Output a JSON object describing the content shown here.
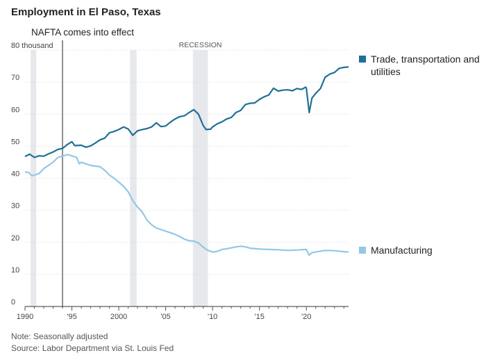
{
  "chart": {
    "title": "Employment in El Paso, Texas",
    "note": "Note: Seasonally adjusted",
    "source": "Source: Labor Department via St. Louis Fed"
  },
  "chart_data": {
    "type": "line",
    "title": "Employment in El Paso, Texas",
    "xlabel": "",
    "ylabel": "",
    "xlim": [
      1990,
      2024.5
    ],
    "ylim": [
      0,
      80
    ],
    "y_ticks": [
      {
        "value": 80,
        "label": "80 thousand"
      },
      {
        "value": 70,
        "label": "70"
      },
      {
        "value": 60,
        "label": "60"
      },
      {
        "value": 50,
        "label": "50"
      },
      {
        "value": 40,
        "label": "40"
      },
      {
        "value": 30,
        "label": "30"
      },
      {
        "value": 20,
        "label": "20"
      },
      {
        "value": 10,
        "label": "10"
      },
      {
        "value": 0,
        "label": "0"
      }
    ],
    "x_ticks": [
      {
        "value": 1990,
        "label": "1990"
      },
      {
        "value": 1995,
        "label": "'95"
      },
      {
        "value": 2000,
        "label": "2000"
      },
      {
        "value": 2005,
        "label": "'05"
      },
      {
        "value": 2010,
        "label": "'10"
      },
      {
        "value": 2015,
        "label": "'15"
      },
      {
        "value": 2020,
        "label": "'20"
      }
    ],
    "grid": true,
    "legend": "right, labels at line ends",
    "recession_bands": [
      {
        "start": 1990.6,
        "end": 1991.2,
        "label": ""
      },
      {
        "start": 2001.2,
        "end": 2001.9,
        "label": ""
      },
      {
        "start": 2007.9,
        "end": 2009.5,
        "label": "RECESSION"
      }
    ],
    "annotations": [
      {
        "x": 1994.0,
        "label": "NAFTA comes into effect"
      }
    ],
    "series": [
      {
        "name": "Trade, transportation and utilities",
        "color": "#1f6f96",
        "points": [
          [
            1990.0,
            46.8
          ],
          [
            1990.5,
            47.5
          ],
          [
            1991.0,
            46.5
          ],
          [
            1991.5,
            47.0
          ],
          [
            1992.0,
            46.9
          ],
          [
            1992.5,
            47.6
          ],
          [
            1993.0,
            48.2
          ],
          [
            1993.5,
            49.0
          ],
          [
            1994.0,
            49.3
          ],
          [
            1994.5,
            50.5
          ],
          [
            1995.0,
            51.4
          ],
          [
            1995.3,
            50.2
          ],
          [
            1996.0,
            50.3
          ],
          [
            1996.5,
            49.7
          ],
          [
            1997.0,
            50.1
          ],
          [
            1997.5,
            51.0
          ],
          [
            1998.0,
            52.0
          ],
          [
            1998.5,
            52.5
          ],
          [
            1999.0,
            54.2
          ],
          [
            1999.5,
            54.6
          ],
          [
            2000.0,
            55.2
          ],
          [
            2000.5,
            56.0
          ],
          [
            2001.0,
            55.4
          ],
          [
            2001.5,
            53.4
          ],
          [
            2002.0,
            54.8
          ],
          [
            2002.5,
            55.2
          ],
          [
            2003.0,
            55.5
          ],
          [
            2003.5,
            56.0
          ],
          [
            2004.0,
            57.3
          ],
          [
            2004.5,
            56.1
          ],
          [
            2005.0,
            56.3
          ],
          [
            2005.5,
            57.5
          ],
          [
            2006.0,
            58.5
          ],
          [
            2006.5,
            59.2
          ],
          [
            2007.0,
            59.5
          ],
          [
            2007.5,
            60.5
          ],
          [
            2008.0,
            61.4
          ],
          [
            2008.5,
            60.0
          ],
          [
            2009.0,
            56.5
          ],
          [
            2009.3,
            55.2
          ],
          [
            2009.8,
            55.3
          ],
          [
            2010.0,
            56.0
          ],
          [
            2010.5,
            57.0
          ],
          [
            2011.0,
            57.6
          ],
          [
            2011.5,
            58.5
          ],
          [
            2012.0,
            59.0
          ],
          [
            2012.5,
            60.5
          ],
          [
            2013.0,
            61.2
          ],
          [
            2013.5,
            63.0
          ],
          [
            2014.0,
            63.4
          ],
          [
            2014.5,
            63.5
          ],
          [
            2015.0,
            64.6
          ],
          [
            2015.5,
            65.4
          ],
          [
            2016.0,
            66.0
          ],
          [
            2016.5,
            68.1
          ],
          [
            2017.0,
            67.2
          ],
          [
            2017.5,
            67.5
          ],
          [
            2018.0,
            67.6
          ],
          [
            2018.5,
            67.3
          ],
          [
            2019.0,
            68.0
          ],
          [
            2019.5,
            67.7
          ],
          [
            2019.9,
            68.4
          ],
          [
            2020.0,
            68.2
          ],
          [
            2020.3,
            60.5
          ],
          [
            2020.6,
            65.0
          ],
          [
            2021.0,
            66.5
          ],
          [
            2021.5,
            68.0
          ],
          [
            2022.0,
            71.5
          ],
          [
            2022.5,
            72.5
          ],
          [
            2023.0,
            73.0
          ],
          [
            2023.5,
            74.3
          ],
          [
            2024.0,
            74.6
          ],
          [
            2024.5,
            74.7
          ]
        ]
      },
      {
        "name": "Manufacturing",
        "color": "#92c8e6",
        "points": [
          [
            1990.0,
            42.0
          ],
          [
            1990.4,
            41.8
          ],
          [
            1990.7,
            40.8
          ],
          [
            1991.0,
            41.0
          ],
          [
            1991.5,
            41.5
          ],
          [
            1992.0,
            43.0
          ],
          [
            1992.5,
            44.0
          ],
          [
            1993.0,
            45.0
          ],
          [
            1993.5,
            46.5
          ],
          [
            1994.0,
            46.9
          ],
          [
            1994.5,
            47.4
          ],
          [
            1995.0,
            47.0
          ],
          [
            1995.5,
            46.5
          ],
          [
            1995.8,
            44.5
          ],
          [
            1996.0,
            45.0
          ],
          [
            1996.5,
            44.5
          ],
          [
            1997.0,
            44.0
          ],
          [
            1997.5,
            43.8
          ],
          [
            1998.0,
            43.6
          ],
          [
            1998.5,
            42.5
          ],
          [
            1999.0,
            41.0
          ],
          [
            1999.5,
            40.0
          ],
          [
            2000.0,
            38.8
          ],
          [
            2000.5,
            37.5
          ],
          [
            2001.0,
            35.8
          ],
          [
            2001.5,
            33.0
          ],
          [
            2002.0,
            31.0
          ],
          [
            2002.5,
            29.5
          ],
          [
            2003.0,
            27.0
          ],
          [
            2003.5,
            25.5
          ],
          [
            2004.0,
            24.5
          ],
          [
            2004.5,
            24.0
          ],
          [
            2005.0,
            23.5
          ],
          [
            2005.5,
            23.0
          ],
          [
            2006.0,
            22.5
          ],
          [
            2006.5,
            21.8
          ],
          [
            2007.0,
            21.0
          ],
          [
            2007.5,
            20.5
          ],
          [
            2008.0,
            20.4
          ],
          [
            2008.5,
            19.8
          ],
          [
            2009.0,
            18.5
          ],
          [
            2009.5,
            17.5
          ],
          [
            2010.0,
            17.0
          ],
          [
            2010.5,
            17.2
          ],
          [
            2011.0,
            17.8
          ],
          [
            2011.5,
            18.0
          ],
          [
            2012.0,
            18.3
          ],
          [
            2012.5,
            18.6
          ],
          [
            2013.0,
            18.8
          ],
          [
            2013.5,
            18.6
          ],
          [
            2014.0,
            18.2
          ],
          [
            2015.0,
            17.9
          ],
          [
            2016.0,
            17.8
          ],
          [
            2017.0,
            17.7
          ],
          [
            2018.0,
            17.5
          ],
          [
            2019.0,
            17.6
          ],
          [
            2020.0,
            17.8
          ],
          [
            2020.3,
            16.0
          ],
          [
            2020.6,
            16.8
          ],
          [
            2021.0,
            17.0
          ],
          [
            2022.0,
            17.5
          ],
          [
            2023.0,
            17.4
          ],
          [
            2024.0,
            17.1
          ],
          [
            2024.5,
            17.0
          ]
        ]
      }
    ]
  }
}
